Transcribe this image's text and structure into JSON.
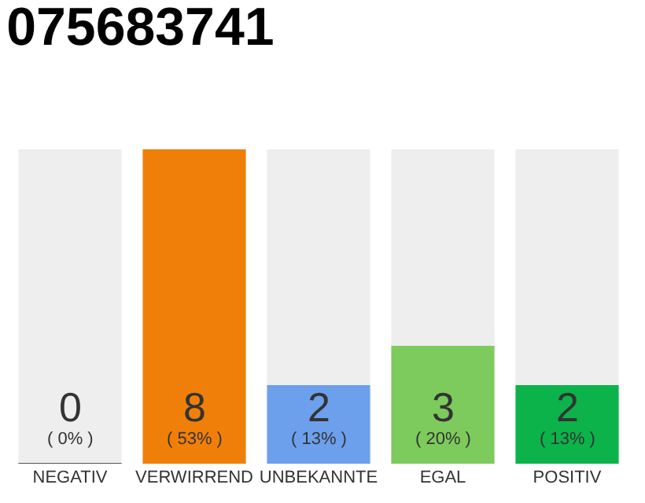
{
  "chart_data": {
    "type": "bar",
    "title": "075683741",
    "categories": [
      "NEGATIV",
      "VERWIRREND",
      "UNBEKANNTE",
      "EGAL",
      "POSITIV"
    ],
    "values": [
      0,
      8,
      2,
      3,
      2
    ],
    "colors": [
      "#555555",
      "#f07f09",
      "#6ca0ec",
      "#7dcb5c",
      "#0cb34a"
    ],
    "value_labels": [
      "0\n( 0% )",
      "8\n( 53% )",
      "2\n( 13% )",
      "3\n( 20% )",
      "2\n( 13% )"
    ],
    "tick_labels": "x",
    "grid": false
  }
}
